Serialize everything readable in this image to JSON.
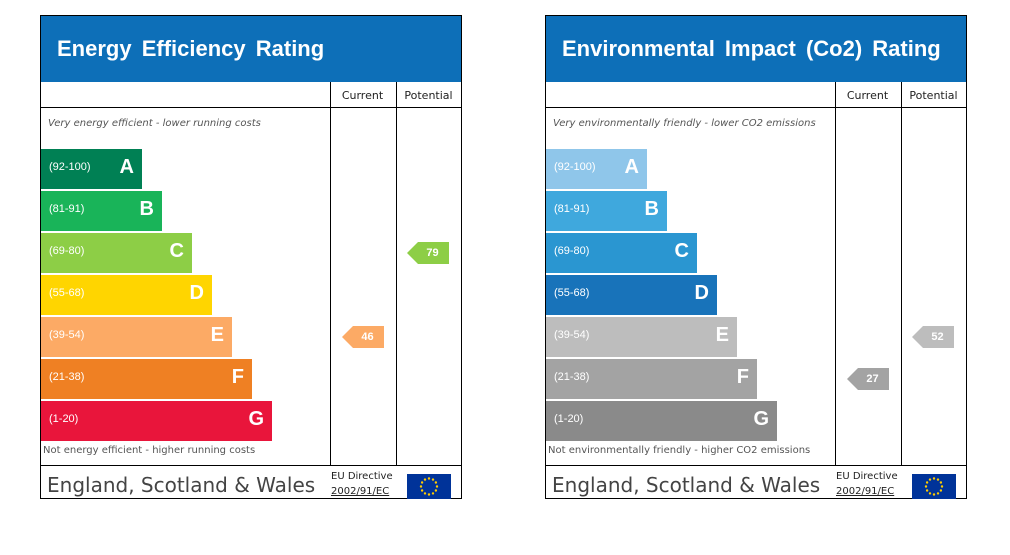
{
  "chart_data": [
    {
      "type": "bar",
      "title": "Energy Efficiency Rating",
      "column_headers": [
        "Current",
        "Potential"
      ],
      "top_note": "Very energy efficient - lower running costs",
      "bottom_note": "Not energy efficient - higher running costs",
      "region": "England, Scotland & Wales",
      "directive": [
        "EU Directive",
        "2002/91/EC"
      ],
      "bands": [
        {
          "range": "(92-100)",
          "letter": "A",
          "color": "#008054"
        },
        {
          "range": "(81-91)",
          "letter": "B",
          "color": "#19b459"
        },
        {
          "range": "(69-80)",
          "letter": "C",
          "color": "#8dce46"
        },
        {
          "range": "(55-68)",
          "letter": "D",
          "color": "#ffd500"
        },
        {
          "range": "(39-54)",
          "letter": "E",
          "color": "#fcaa65"
        },
        {
          "range": "(21-38)",
          "letter": "F",
          "color": "#ef8023"
        },
        {
          "range": "(1-20)",
          "letter": "G",
          "color": "#e9153b"
        }
      ],
      "current": {
        "value": "46",
        "band": "E",
        "color": "#fcaa65"
      },
      "potential": {
        "value": "79",
        "band": "C",
        "color": "#8dce46"
      }
    },
    {
      "type": "bar",
      "title": "Environmental Impact (Co2) Rating",
      "column_headers": [
        "Current",
        "Potential"
      ],
      "top_note": "Very environmentally friendly - lower CO2 emissions",
      "bottom_note": "Not environmentally friendly - higher CO2 emissions",
      "region": "England, Scotland & Wales",
      "directive": [
        "EU Directive",
        "2002/91/EC"
      ],
      "bands": [
        {
          "range": "(92-100)",
          "letter": "A",
          "color": "#8fc6ea"
        },
        {
          "range": "(81-91)",
          "letter": "B",
          "color": "#3fa8dd"
        },
        {
          "range": "(69-80)",
          "letter": "C",
          "color": "#2a96d1"
        },
        {
          "range": "(55-68)",
          "letter": "D",
          "color": "#1873ba"
        },
        {
          "range": "(39-54)",
          "letter": "E",
          "color": "#bdbdbd"
        },
        {
          "range": "(21-38)",
          "letter": "F",
          "color": "#a3a3a3"
        },
        {
          "range": "(1-20)",
          "letter": "G",
          "color": "#8a8a8a"
        }
      ],
      "current": {
        "value": "27",
        "band": "F",
        "color": "#a3a3a3"
      },
      "potential": {
        "value": "52",
        "band": "E",
        "color": "#bdbdbd"
      }
    }
  ]
}
